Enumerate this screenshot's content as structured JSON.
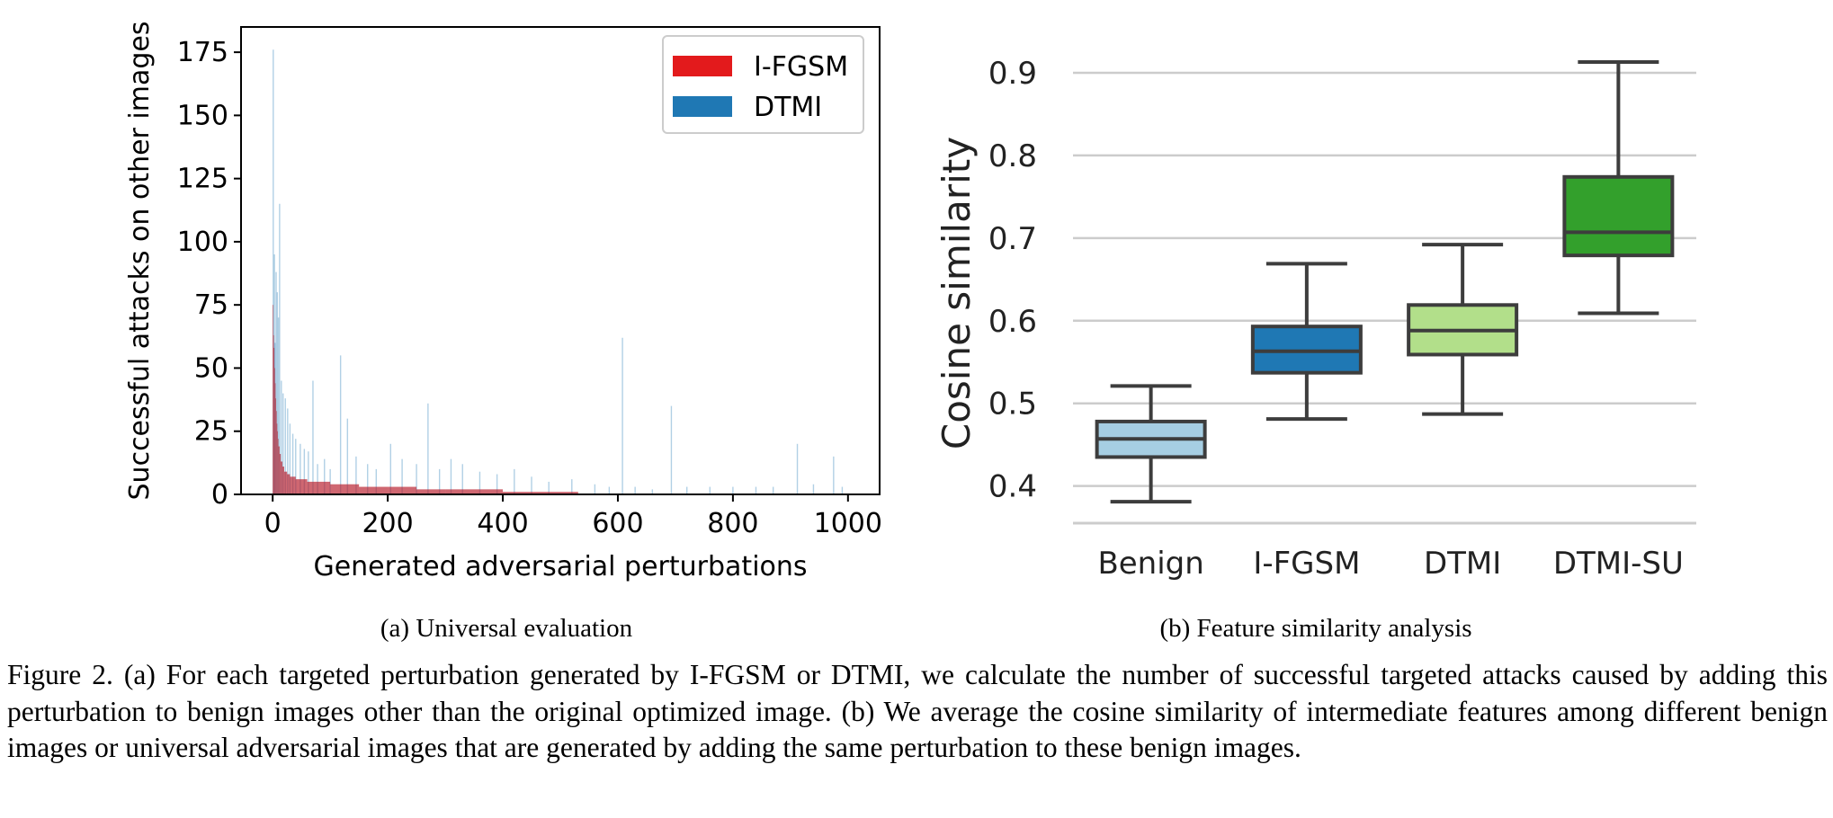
{
  "chart_data": [
    {
      "type": "bar",
      "subcaption": "(a) Universal evaluation",
      "xlabel": "Generated adversarial perturbations",
      "ylabel": "Successful attacks on other images",
      "xlim": [
        -55,
        1055
      ],
      "ylim": [
        0,
        185
      ],
      "xticks": [
        "0",
        "200",
        "400",
        "600",
        "800",
        "1000"
      ],
      "yticks": [
        "0",
        "25",
        "50",
        "75",
        "100",
        "125",
        "150",
        "175"
      ],
      "legend": {
        "position": "top-right",
        "entries": [
          "I-FGSM",
          "DTMI"
        ]
      },
      "series": [
        {
          "name": "I-FGSM",
          "color": "#e31a1c",
          "values_at_index": [
            [
              0,
              75
            ],
            [
              1,
              63
            ],
            [
              2,
              58
            ],
            [
              3,
              50
            ],
            [
              4,
              44
            ],
            [
              5,
              38
            ],
            [
              6,
              33
            ],
            [
              7,
              28
            ],
            [
              8,
              25
            ],
            [
              9,
              22
            ],
            [
              10,
              19
            ],
            [
              12,
              16
            ],
            [
              14,
              13
            ],
            [
              17,
              11
            ],
            [
              20,
              9
            ],
            [
              25,
              8
            ],
            [
              30,
              7
            ],
            [
              40,
              6
            ],
            [
              60,
              5
            ],
            [
              100,
              4
            ],
            [
              150,
              3
            ],
            [
              200,
              3
            ],
            [
              250,
              2
            ],
            [
              300,
              2
            ],
            [
              400,
              1
            ],
            [
              500,
              1
            ],
            [
              530,
              1
            ],
            [
              531,
              0
            ]
          ]
        },
        {
          "name": "DTMI",
          "color": "#1f78b4",
          "spikes": [
            [
              1,
              176
            ],
            [
              3,
              95
            ],
            [
              4,
              60
            ],
            [
              6,
              88
            ],
            [
              8,
              80
            ],
            [
              10,
              70
            ],
            [
              12,
              115
            ],
            [
              15,
              45
            ],
            [
              18,
              40
            ],
            [
              22,
              38
            ],
            [
              26,
              34
            ],
            [
              30,
              28
            ],
            [
              35,
              24
            ],
            [
              40,
              22
            ],
            [
              48,
              20
            ],
            [
              55,
              18
            ],
            [
              62,
              17
            ],
            [
              70,
              45
            ],
            [
              78,
              12
            ],
            [
              90,
              14
            ],
            [
              100,
              10
            ],
            [
              118,
              55
            ],
            [
              130,
              30
            ],
            [
              145,
              15
            ],
            [
              165,
              12
            ],
            [
              180,
              10
            ],
            [
              205,
              20
            ],
            [
              225,
              14
            ],
            [
              250,
              12
            ],
            [
              270,
              36
            ],
            [
              290,
              10
            ],
            [
              310,
              14
            ],
            [
              330,
              12
            ],
            [
              360,
              9
            ],
            [
              390,
              8
            ],
            [
              420,
              10
            ],
            [
              450,
              7
            ],
            [
              480,
              5
            ],
            [
              520,
              6
            ],
            [
              560,
              4
            ],
            [
              585,
              3
            ],
            [
              608,
              62
            ],
            [
              630,
              3
            ],
            [
              660,
              2
            ],
            [
              693,
              35
            ],
            [
              720,
              3
            ],
            [
              760,
              3
            ],
            [
              800,
              3
            ],
            [
              840,
              3
            ],
            [
              870,
              3
            ],
            [
              912,
              20
            ],
            [
              940,
              4
            ],
            [
              975,
              15
            ],
            [
              990,
              3
            ]
          ]
        }
      ]
    },
    {
      "type": "box",
      "subcaption": "(b) Feature similarity analysis",
      "xlabel": "",
      "ylabel": "Cosine similarity",
      "ylim": [
        0.355,
        0.95
      ],
      "yticks": [
        "0.4",
        "0.5",
        "0.6",
        "0.7",
        "0.8",
        "0.9"
      ],
      "categories": [
        "Benign",
        "I-FGSM",
        "DTMI",
        "DTMI-SU"
      ],
      "colors": [
        "#a6cee3",
        "#1f78b4",
        "#b2df8a",
        "#33a02c"
      ],
      "boxes": [
        {
          "min": 0.381,
          "q1": 0.435,
          "median": 0.457,
          "q3": 0.478,
          "max": 0.521
        },
        {
          "min": 0.481,
          "q1": 0.537,
          "median": 0.563,
          "q3": 0.593,
          "max": 0.669
        },
        {
          "min": 0.487,
          "q1": 0.559,
          "median": 0.588,
          "q3": 0.619,
          "max": 0.692
        },
        {
          "min": 0.609,
          "q1": 0.679,
          "median": 0.707,
          "q3": 0.774,
          "max": 0.913
        }
      ]
    }
  ],
  "caption": "Figure 2. (a) For each targeted perturbation generated by I-FGSM or DTMI, we calculate the number of successful targeted attacks caused by adding this perturbation to benign images other than the original optimized image. (b) We average the cosine similarity of intermediate features among different benign images or universal adversarial images that are generated by adding the same perturbation to these benign images."
}
